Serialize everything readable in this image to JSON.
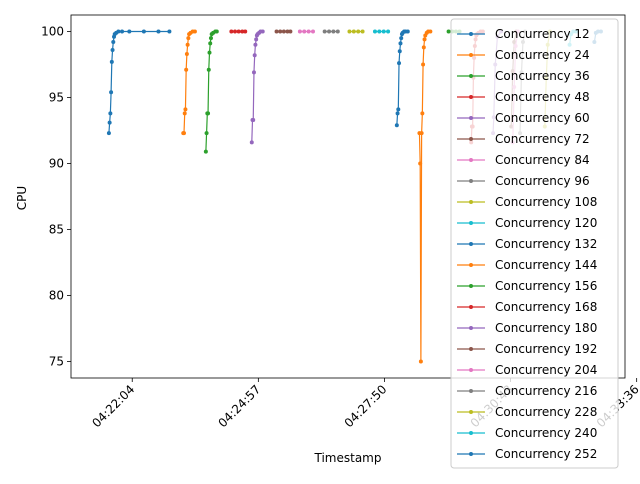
{
  "chart_data": {
    "type": "line",
    "title": "",
    "xlabel": "Timestamp",
    "ylabel": "CPU",
    "x_unit": "seconds",
    "xlim": [
      "04:20:40",
      "04:33:20"
    ],
    "ylim": [
      73.75,
      101.25
    ],
    "x_ticks": [
      "04:22:04",
      "04:24:57",
      "04:27:50",
      "04:30:43",
      "04:33:36"
    ],
    "y_ticks": [
      75,
      80,
      85,
      90,
      95,
      100
    ],
    "grid": false,
    "legend_position": "upper-right",
    "series": [
      {
        "name": "Concurrency 12",
        "color": "#1f77b4",
        "x": [
          "04:21:32",
          "04:21:33",
          "04:21:34",
          "04:21:35",
          "04:21:36",
          "04:21:37",
          "04:21:38",
          "04:21:39",
          "04:21:40",
          "04:21:42",
          "04:21:45",
          "04:21:50",
          "04:22:00",
          "04:22:20",
          "04:22:40",
          "04:22:55"
        ],
        "y": [
          92.3,
          93.1,
          93.8,
          95.4,
          97.7,
          98.6,
          99.2,
          99.6,
          99.8,
          99.9,
          100,
          100,
          100,
          100,
          100,
          100
        ]
      },
      {
        "name": "Concurrency 24",
        "color": "#ff7f0e",
        "x": [
          "04:23:14",
          "04:23:15",
          "04:23:16",
          "04:23:17",
          "04:23:18",
          "04:23:19",
          "04:23:20",
          "04:23:21",
          "04:23:22",
          "04:23:24",
          "04:23:27",
          "04:23:30"
        ],
        "y": [
          92.3,
          92.3,
          93.8,
          94.1,
          97.1,
          98.3,
          99.0,
          99.5,
          99.8,
          99.9,
          100,
          100
        ]
      },
      {
        "name": "Concurrency 36",
        "color": "#2ca02c",
        "x": [
          "04:23:45",
          "04:23:46",
          "04:23:47",
          "04:23:48",
          "04:23:49",
          "04:23:50",
          "04:23:51",
          "04:23:52",
          "04:23:53",
          "04:23:55",
          "04:23:58",
          "04:24:00"
        ],
        "y": [
          90.9,
          92.3,
          93.8,
          93.8,
          97.1,
          98.4,
          99.1,
          99.5,
          99.8,
          99.9,
          100,
          100
        ]
      },
      {
        "name": "Concurrency 48",
        "color": "#d62728",
        "x": [
          "04:24:20",
          "04:24:25",
          "04:24:30",
          "04:24:35",
          "04:24:39"
        ],
        "y": [
          100,
          100,
          100,
          100,
          100
        ]
      },
      {
        "name": "Concurrency 60",
        "color": "#9467bd",
        "x": [
          "04:24:48",
          "04:24:49",
          "04:24:50",
          "04:24:51",
          "04:24:52",
          "04:24:53",
          "04:24:54",
          "04:24:55",
          "04:24:56",
          "04:24:58",
          "04:25:00",
          "04:25:03"
        ],
        "y": [
          91.6,
          93.3,
          93.3,
          96.9,
          98.2,
          99.0,
          99.4,
          99.7,
          99.8,
          99.9,
          100,
          100
        ]
      },
      {
        "name": "Concurrency 72",
        "color": "#8c564b",
        "x": [
          "04:25:22",
          "04:25:27",
          "04:25:32",
          "04:25:37",
          "04:25:41"
        ],
        "y": [
          100,
          100,
          100,
          100,
          100
        ]
      },
      {
        "name": "Concurrency 84",
        "color": "#e377c2",
        "x": [
          "04:25:54",
          "04:26:00",
          "04:26:06",
          "04:26:12"
        ],
        "y": [
          100,
          100,
          100,
          100
        ]
      },
      {
        "name": "Concurrency 96",
        "color": "#7f7f7f",
        "x": [
          "04:26:28",
          "04:26:34",
          "04:26:40",
          "04:26:46"
        ],
        "y": [
          100,
          100,
          100,
          100
        ]
      },
      {
        "name": "Concurrency 108",
        "color": "#bcbd22",
        "x": [
          "04:27:02",
          "04:27:08",
          "04:27:14",
          "04:27:20"
        ],
        "y": [
          100,
          100,
          100,
          100
        ]
      },
      {
        "name": "Concurrency 120",
        "color": "#17becf",
        "x": [
          "04:27:37",
          "04:27:43",
          "04:27:49",
          "04:27:55"
        ],
        "y": [
          100,
          100,
          100,
          100
        ]
      },
      {
        "name": "Concurrency 132",
        "color": "#1f77b4",
        "x": [
          "04:28:07",
          "04:28:08",
          "04:28:09",
          "04:28:10",
          "04:28:11",
          "04:28:12",
          "04:28:13",
          "04:28:14",
          "04:28:15",
          "04:28:17",
          "04:28:19",
          "04:28:22"
        ],
        "y": [
          92.9,
          93.8,
          94.1,
          97.6,
          98.5,
          99.1,
          99.5,
          99.8,
          99.9,
          100,
          100,
          100
        ]
      },
      {
        "name": "Concurrency 144",
        "color": "#ff7f0e",
        "x": [
          "04:28:38",
          "04:28:39",
          "04:28:40",
          "04:28:41",
          "04:28:42",
          "04:28:43",
          "04:28:44",
          "04:28:45",
          "04:28:46",
          "04:28:48",
          "04:28:50",
          "04:28:53"
        ],
        "y": [
          92.3,
          90.0,
          75.0,
          92.3,
          93.8,
          97.5,
          98.8,
          99.4,
          99.7,
          99.9,
          100,
          100
        ]
      },
      {
        "name": "Concurrency 156",
        "color": "#2ca02c",
        "x": [
          "04:29:18",
          "04:29:23",
          "04:29:28",
          "04:29:33"
        ],
        "y": [
          100,
          100,
          100,
          100
        ]
      },
      {
        "name": "Concurrency 168",
        "color": "#d62728",
        "x": [
          "04:29:49",
          "04:29:50",
          "04:29:51",
          "04:29:52",
          "04:29:53",
          "04:29:54",
          "04:29:55",
          "04:29:56",
          "04:29:57",
          "04:29:59",
          "04:30:02",
          "04:30:05"
        ],
        "y": [
          91.6,
          92.8,
          92.8,
          96.5,
          98.0,
          98.9,
          99.4,
          99.7,
          99.8,
          99.9,
          100,
          100
        ]
      },
      {
        "name": "Concurrency 180",
        "color": "#9467bd",
        "x": [
          "04:30:19",
          "04:30:20",
          "04:30:22",
          "04:30:25",
          "04:30:30"
        ],
        "y": [
          92.3,
          93.5,
          97.5,
          99.6,
          100
        ]
      },
      {
        "name": "Concurrency 192",
        "color": "#8c564b",
        "x": [
          "04:30:44",
          "04:30:46",
          "04:30:48",
          "04:30:51"
        ],
        "y": [
          92.8,
          97.0,
          99.2,
          100
        ]
      },
      {
        "name": "Concurrency 204",
        "color": "#e377c2",
        "x": [
          "04:30:46",
          "04:30:48",
          "04:30:50",
          "04:30:53"
        ],
        "y": [
          91.6,
          95.8,
          98.9,
          100
        ]
      },
      {
        "name": "Concurrency 216",
        "color": "#7f7f7f",
        "x": [
          "04:30:56",
          "04:30:58",
          "04:31:00",
          "04:31:03"
        ],
        "y": [
          92.3,
          96.9,
          99.2,
          100
        ]
      },
      {
        "name": "Concurrency 228",
        "color": "#bcbd22",
        "x": [
          "04:31:30",
          "04:31:32",
          "04:31:34",
          "04:31:37"
        ],
        "y": [
          92.8,
          96.5,
          99.0,
          100
        ]
      },
      {
        "name": "Concurrency 240",
        "color": "#17becf",
        "x": [
          "04:32:04",
          "04:32:06",
          "04:32:09",
          "04:32:13"
        ],
        "y": [
          99.0,
          99.8,
          100,
          100
        ]
      },
      {
        "name": "Concurrency 252",
        "color": "#1f77b4",
        "x": [
          "04:32:38",
          "04:32:40",
          "04:32:43",
          "04:32:47"
        ],
        "y": [
          99.2,
          99.9,
          100,
          100
        ]
      }
    ]
  }
}
